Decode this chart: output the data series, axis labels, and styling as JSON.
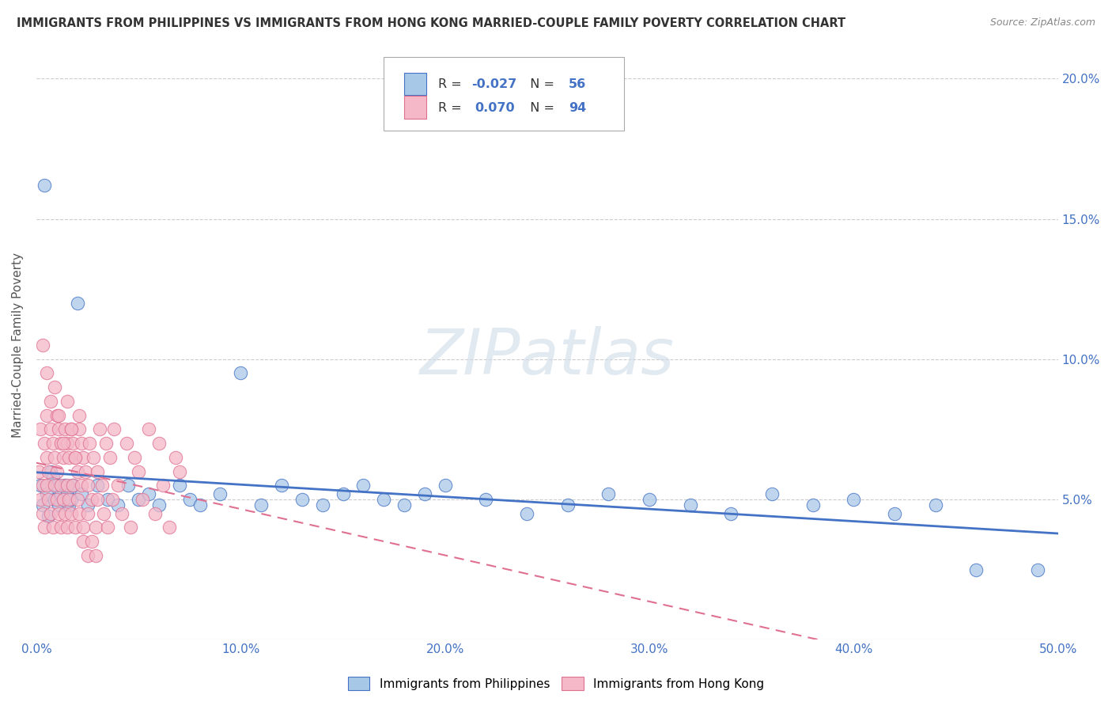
{
  "title": "IMMIGRANTS FROM PHILIPPINES VS IMMIGRANTS FROM HONG KONG MARRIED-COUPLE FAMILY POVERTY CORRELATION CHART",
  "source": "Source: ZipAtlas.com",
  "ylabel": "Married-Couple Family Poverty",
  "xlim": [
    0,
    0.5
  ],
  "ylim": [
    0,
    0.21
  ],
  "xtick_vals": [
    0.0,
    0.1,
    0.2,
    0.3,
    0.4,
    0.5
  ],
  "xtick_labels": [
    "0.0%",
    "10.0%",
    "20.0%",
    "30.0%",
    "40.0%",
    "50.0%"
  ],
  "ytick_vals": [
    0.05,
    0.1,
    0.15,
    0.2
  ],
  "ytick_labels": [
    "5.0%",
    "10.0%",
    "15.0%",
    "20.0%"
  ],
  "philippines_R": -0.027,
  "philippines_N": 56,
  "hongkong_R": 0.07,
  "hongkong_N": 94,
  "blue_fill": "#a8c8e8",
  "blue_edge": "#4472c4",
  "pink_fill": "#f4b8c8",
  "pink_edge": "#e07090",
  "blue_line": "#4472c4",
  "pink_line": "#e07090",
  "watermark": "ZIPatlas",
  "bg": "#ffffff",
  "philippines_x": [
    0.002,
    0.003,
    0.004,
    0.005,
    0.006,
    0.007,
    0.008,
    0.009,
    0.01,
    0.011,
    0.012,
    0.013,
    0.014,
    0.015,
    0.016,
    0.017,
    0.018,
    0.02,
    0.022,
    0.025,
    0.03,
    0.035,
    0.04,
    0.045,
    0.05,
    0.055,
    0.06,
    0.07,
    0.075,
    0.08,
    0.09,
    0.1,
    0.11,
    0.12,
    0.13,
    0.14,
    0.15,
    0.16,
    0.17,
    0.18,
    0.19,
    0.2,
    0.22,
    0.24,
    0.26,
    0.28,
    0.3,
    0.32,
    0.34,
    0.36,
    0.38,
    0.4,
    0.42,
    0.44,
    0.46,
    0.49
  ],
  "philippines_y": [
    0.055,
    0.048,
    0.162,
    0.052,
    0.044,
    0.06,
    0.058,
    0.05,
    0.055,
    0.048,
    0.052,
    0.05,
    0.055,
    0.052,
    0.048,
    0.05,
    0.055,
    0.12,
    0.052,
    0.048,
    0.055,
    0.05,
    0.048,
    0.055,
    0.05,
    0.052,
    0.048,
    0.055,
    0.05,
    0.048,
    0.052,
    0.095,
    0.048,
    0.055,
    0.05,
    0.048,
    0.052,
    0.055,
    0.05,
    0.048,
    0.052,
    0.055,
    0.05,
    0.045,
    0.048,
    0.052,
    0.05,
    0.048,
    0.045,
    0.052,
    0.048,
    0.05,
    0.045,
    0.048,
    0.025,
    0.025
  ],
  "hongkong_x": [
    0.001,
    0.002,
    0.002,
    0.003,
    0.003,
    0.004,
    0.004,
    0.005,
    0.005,
    0.005,
    0.006,
    0.006,
    0.007,
    0.007,
    0.008,
    0.008,
    0.009,
    0.009,
    0.01,
    0.01,
    0.01,
    0.011,
    0.011,
    0.012,
    0.012,
    0.012,
    0.013,
    0.013,
    0.014,
    0.014,
    0.015,
    0.015,
    0.015,
    0.016,
    0.016,
    0.017,
    0.017,
    0.018,
    0.018,
    0.019,
    0.019,
    0.02,
    0.02,
    0.021,
    0.021,
    0.022,
    0.022,
    0.023,
    0.023,
    0.024,
    0.025,
    0.025,
    0.026,
    0.027,
    0.028,
    0.029,
    0.03,
    0.03,
    0.031,
    0.032,
    0.033,
    0.034,
    0.035,
    0.036,
    0.037,
    0.038,
    0.04,
    0.042,
    0.044,
    0.046,
    0.048,
    0.05,
    0.052,
    0.055,
    0.058,
    0.06,
    0.062,
    0.065,
    0.068,
    0.07,
    0.003,
    0.005,
    0.007,
    0.009,
    0.011,
    0.013,
    0.015,
    0.017,
    0.019,
    0.021,
    0.023,
    0.025,
    0.027,
    0.029
  ],
  "hongkong_y": [
    0.06,
    0.05,
    0.075,
    0.055,
    0.045,
    0.07,
    0.04,
    0.065,
    0.055,
    0.08,
    0.06,
    0.05,
    0.075,
    0.045,
    0.07,
    0.04,
    0.065,
    0.055,
    0.08,
    0.06,
    0.05,
    0.075,
    0.045,
    0.07,
    0.055,
    0.04,
    0.065,
    0.05,
    0.075,
    0.045,
    0.07,
    0.055,
    0.04,
    0.065,
    0.05,
    0.075,
    0.045,
    0.07,
    0.055,
    0.04,
    0.065,
    0.06,
    0.05,
    0.075,
    0.045,
    0.07,
    0.055,
    0.04,
    0.065,
    0.06,
    0.055,
    0.045,
    0.07,
    0.05,
    0.065,
    0.04,
    0.06,
    0.05,
    0.075,
    0.055,
    0.045,
    0.07,
    0.04,
    0.065,
    0.05,
    0.075,
    0.055,
    0.045,
    0.07,
    0.04,
    0.065,
    0.06,
    0.05,
    0.075,
    0.045,
    0.07,
    0.055,
    0.04,
    0.065,
    0.06,
    0.105,
    0.095,
    0.085,
    0.09,
    0.08,
    0.07,
    0.085,
    0.075,
    0.065,
    0.08,
    0.035,
    0.03,
    0.035,
    0.03
  ]
}
